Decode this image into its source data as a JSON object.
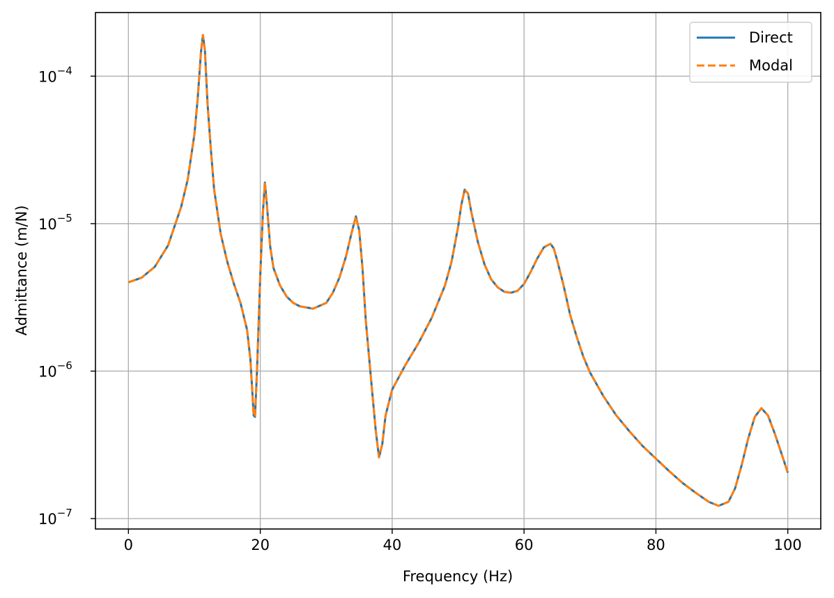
{
  "chart_data": {
    "type": "line",
    "title": "",
    "xlabel": "Frequency (Hz)",
    "ylabel": "Admittance (m/N)",
    "xlim": [
      -5,
      105
    ],
    "ylim": [
      8.5e-08,
      0.00027
    ],
    "yscale": "log",
    "grid": true,
    "legend_position": "top-right",
    "x_ticks": [
      {
        "value": 0,
        "label": "0"
      },
      {
        "value": 20,
        "label": "20"
      },
      {
        "value": 40,
        "label": "40"
      },
      {
        "value": 60,
        "label": "60"
      },
      {
        "value": 80,
        "label": "80"
      },
      {
        "value": 100,
        "label": "100"
      }
    ],
    "y_ticks": [
      {
        "value": 1e-07,
        "base": "10",
        "exp": "−7"
      },
      {
        "value": 1e-06,
        "base": "10",
        "exp": "−6"
      },
      {
        "value": 1e-05,
        "base": "10",
        "exp": "−5"
      },
      {
        "value": 0.0001,
        "base": "10",
        "exp": "−4"
      }
    ],
    "x": [
      0,
      2,
      4,
      6,
      8,
      9,
      10,
      10.5,
      11,
      11.3,
      11.6,
      12,
      12.5,
      13,
      14,
      15,
      16,
      17,
      18,
      18.5,
      19,
      19.2,
      19.5,
      20,
      20.4,
      20.7,
      21,
      21.5,
      22,
      23,
      24,
      25,
      26,
      28,
      30,
      31,
      32,
      33,
      33.8,
      34.5,
      35,
      35.5,
      36,
      37,
      37.5,
      38,
      38.5,
      39,
      40,
      42,
      44,
      46,
      48,
      49,
      50,
      50.5,
      51,
      51.5,
      52,
      53,
      54,
      55,
      56,
      57,
      58,
      59,
      60,
      61,
      62,
      63,
      64,
      64.5,
      65,
      66,
      67,
      68,
      69,
      70,
      72,
      74,
      76,
      78,
      80,
      82,
      84,
      86,
      88,
      89.5,
      91,
      92,
      93,
      94,
      95,
      96,
      97,
      98,
      99,
      100
    ],
    "series": [
      {
        "name": "Direct",
        "color": "#1f77b4",
        "dash": "solid",
        "values": [
          4e-06,
          4.3e-06,
          5.1e-06,
          7.1e-06,
          1.3e-05,
          2e-05,
          4e-05,
          7e-05,
          0.000145,
          0.00019,
          0.00015,
          6.5e-05,
          3.2e-05,
          1.7e-05,
          8.5e-06,
          5.5e-06,
          3.9e-06,
          2.9e-06,
          1.9e-06,
          1.2e-06,
          5e-07,
          4.9e-07,
          1e-06,
          4.5e-06,
          1.2e-05,
          1.9e-05,
          1.35e-05,
          7e-06,
          5e-06,
          3.8e-06,
          3.2e-06,
          2.9e-06,
          2.75e-06,
          2.65e-06,
          2.9e-06,
          3.4e-06,
          4.3e-06,
          6e-06,
          8.5e-06,
          1.12e-05,
          9e-06,
          5e-06,
          2.2e-06,
          7e-07,
          4e-07,
          2.6e-07,
          3.2e-07,
          5e-07,
          7.5e-07,
          1.1e-06,
          1.55e-06,
          2.3e-06,
          3.8e-06,
          5.5e-06,
          9.5e-06,
          1.35e-05,
          1.7e-05,
          1.6e-05,
          1.2e-05,
          7.5e-06,
          5.3e-06,
          4.2e-06,
          3.7e-06,
          3.45e-06,
          3.4e-06,
          3.5e-06,
          3.9e-06,
          4.7e-06,
          5.8e-06,
          6.9e-06,
          7.3e-06,
          6.8e-06,
          5.7e-06,
          3.8e-06,
          2.4e-06,
          1.7e-06,
          1.25e-06,
          9.8e-07,
          6.8e-07,
          5e-07,
          3.9e-07,
          3.1e-07,
          2.55e-07,
          2.1e-07,
          1.75e-07,
          1.5e-07,
          1.3e-07,
          1.22e-07,
          1.3e-07,
          1.6e-07,
          2.3e-07,
          3.5e-07,
          4.9e-07,
          5.6e-07,
          5e-07,
          3.8e-07,
          2.8e-07,
          2.05e-07
        ]
      },
      {
        "name": "Modal",
        "color": "#ff7f0e",
        "dash": "dashed",
        "values": [
          4e-06,
          4.3e-06,
          5.1e-06,
          7.1e-06,
          1.3e-05,
          2e-05,
          4e-05,
          7e-05,
          0.000145,
          0.00019,
          0.00015,
          6.5e-05,
          3.2e-05,
          1.7e-05,
          8.5e-06,
          5.5e-06,
          3.9e-06,
          2.9e-06,
          1.9e-06,
          1.2e-06,
          5e-07,
          4.9e-07,
          1e-06,
          4.5e-06,
          1.2e-05,
          1.9e-05,
          1.35e-05,
          7e-06,
          5e-06,
          3.8e-06,
          3.2e-06,
          2.9e-06,
          2.75e-06,
          2.65e-06,
          2.9e-06,
          3.4e-06,
          4.3e-06,
          6e-06,
          8.5e-06,
          1.12e-05,
          9e-06,
          5e-06,
          2.2e-06,
          7e-07,
          4e-07,
          2.6e-07,
          3.2e-07,
          5e-07,
          7.5e-07,
          1.1e-06,
          1.55e-06,
          2.3e-06,
          3.8e-06,
          5.5e-06,
          9.5e-06,
          1.35e-05,
          1.7e-05,
          1.6e-05,
          1.2e-05,
          7.5e-06,
          5.3e-06,
          4.2e-06,
          3.7e-06,
          3.45e-06,
          3.4e-06,
          3.5e-06,
          3.9e-06,
          4.7e-06,
          5.8e-06,
          6.9e-06,
          7.3e-06,
          6.8e-06,
          5.7e-06,
          3.8e-06,
          2.4e-06,
          1.7e-06,
          1.25e-06,
          9.8e-07,
          6.8e-07,
          5e-07,
          3.9e-07,
          3.1e-07,
          2.55e-07,
          2.1e-07,
          1.75e-07,
          1.5e-07,
          1.3e-07,
          1.22e-07,
          1.3e-07,
          1.6e-07,
          2.3e-07,
          3.5e-07,
          4.9e-07,
          5.6e-07,
          5e-07,
          3.8e-07,
          2.8e-07,
          2.05e-07
        ]
      }
    ]
  }
}
